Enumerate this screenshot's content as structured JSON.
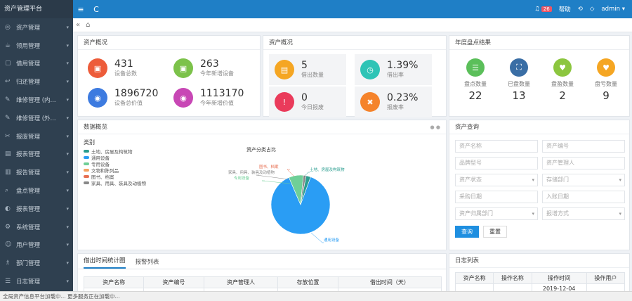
{
  "brand": "资产管理平台",
  "sidebar": {
    "items": [
      {
        "icon": "◎",
        "label": "资产管理"
      },
      {
        "icon": "☕",
        "label": "领用管理"
      },
      {
        "icon": "▢",
        "label": "借用管理"
      },
      {
        "icon": "↩",
        "label": "归还管理"
      },
      {
        "icon": "✎",
        "label": "维修管理 (内..."
      },
      {
        "icon": "✎",
        "label": "维修管理 (外..."
      },
      {
        "icon": "✂",
        "label": "报废管理"
      },
      {
        "icon": "▤",
        "label": "报表管理"
      },
      {
        "icon": "▥",
        "label": "报告管理"
      },
      {
        "icon": "⌕",
        "label": "盘点管理"
      },
      {
        "icon": "◐",
        "label": "报表管理"
      },
      {
        "icon": "⚙",
        "label": "系统管理"
      },
      {
        "icon": "☺",
        "label": "用户管理"
      },
      {
        "icon": "♗",
        "label": "部门管理"
      },
      {
        "icon": "☰",
        "label": "日志管理"
      }
    ]
  },
  "topbar": {
    "menu_icon": "≡",
    "refresh_icon": "C",
    "bell_count": "26",
    "help": "帮助",
    "user": "admin"
  },
  "panels": {
    "asset_overview": {
      "title": "资产概况",
      "stats": [
        {
          "value": "431",
          "label": "设备总数",
          "color": "#ed5c3a"
        },
        {
          "value": "263",
          "label": "今年新增设备",
          "color": "#7cc24a"
        },
        {
          "value": "1896720",
          "label": "设备总价值",
          "color": "#3d7be0"
        },
        {
          "value": "1113170",
          "label": "今年新增价值",
          "color": "#c847b5"
        }
      ]
    },
    "borrow_overview": {
      "title": "资产概况",
      "stats": [
        {
          "value": "5",
          "label": "借出数量",
          "color": "#f5a623"
        },
        {
          "value": "1.39%",
          "label": "借出率",
          "color": "#2ec4b6"
        },
        {
          "value": "0",
          "label": "今日报废",
          "color": "#ea3b5b"
        },
        {
          "value": "0.23%",
          "label": "报废率",
          "color": "#f5832b"
        }
      ]
    },
    "yearly": {
      "title": "年度盘点结果",
      "stats": [
        {
          "label": "盘点数量",
          "value": "22",
          "color": "#5bbf5a"
        },
        {
          "label": "已盘数量",
          "value": "13",
          "color": "#3a6ea5"
        },
        {
          "label": "盘盈数量",
          "value": "2",
          "color": "#8cc63f"
        },
        {
          "label": "盘亏数量",
          "value": "9",
          "color": "#f5a623"
        }
      ]
    },
    "chart": {
      "title": "数据概览",
      "legend_title": "类别",
      "chart_title": "资产分类占比",
      "legend": [
        {
          "name": "土地、房屋及构筑物",
          "color": "#2a9d8f"
        },
        {
          "name": "通用设备",
          "color": "#2a9df4"
        },
        {
          "name": "专用设备",
          "color": "#6fcf97"
        },
        {
          "name": "文物和陈列品",
          "color": "#f4a261"
        },
        {
          "name": "图书、档案",
          "color": "#e76f51"
        },
        {
          "name": "家具、用具、装具及动植物",
          "color": "#888888"
        }
      ]
    },
    "search": {
      "title": "资产查询",
      "fields": [
        {
          "placeholder": "资产名称",
          "select": false
        },
        {
          "placeholder": "资产编号",
          "select": false
        },
        {
          "placeholder": "品牌型号",
          "select": false
        },
        {
          "placeholder": "资产管理人",
          "select": false
        },
        {
          "placeholder": "资产状态",
          "select": true
        },
        {
          "placeholder": "存储部门",
          "select": true
        },
        {
          "placeholder": "采购日期",
          "select": false
        },
        {
          "placeholder": "入账日期",
          "select": false
        },
        {
          "placeholder": "资产归属部门",
          "select": true
        },
        {
          "placeholder": "报增方式",
          "select": true
        }
      ],
      "query_label": "查询",
      "reset_label": "重置"
    },
    "borrow_stats": {
      "tabs": [
        "借出时间统计图",
        "报警列表"
      ],
      "columns": [
        "资产名称",
        "资产编号",
        "资产管理人",
        "存放位置",
        "借出时间（天）"
      ]
    },
    "log": {
      "title": "日志列表",
      "columns": [
        "资产名称",
        "操作名称",
        "操作时间",
        "操作用户"
      ],
      "first_time": "2019-12-04"
    }
  },
  "chart_data": {
    "type": "pie",
    "title": "资产分类占比",
    "series": [
      {
        "name": "通用设备",
        "value": 88
      },
      {
        "name": "专用设备",
        "value": 8
      },
      {
        "name": "家具、用具、装具及动植物",
        "value": 1.5
      },
      {
        "name": "土地、房屋及构筑物",
        "value": 2.5
      }
    ],
    "callouts": [
      "家具、用具、装具及动植物",
      "专用设备",
      "图书、档案",
      "土地、房屋及构筑物",
      "通用设备"
    ]
  },
  "statusbar": "全局资产信息平台加载中... 更多服务正在加载中..."
}
